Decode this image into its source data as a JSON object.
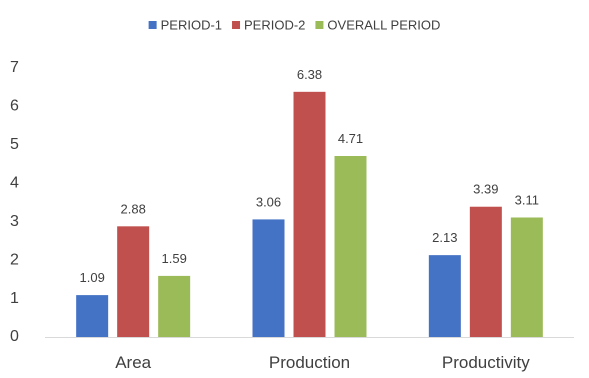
{
  "chart_data": {
    "type": "bar",
    "categories": [
      "Area",
      "Production",
      "Productivity"
    ],
    "series": [
      {
        "name": "PERIOD-1",
        "color": "#4472C4",
        "values": [
          1.09,
          3.06,
          2.13
        ]
      },
      {
        "name": "PERIOD-2",
        "color": "#C0504D",
        "values": [
          2.88,
          6.38,
          3.39
        ]
      },
      {
        "name": "OVERALL PERIOD",
        "color": "#9BBB59",
        "values": [
          1.59,
          4.71,
          3.11
        ]
      }
    ],
    "yticks": [
      0,
      1,
      2,
      3,
      4,
      5,
      6,
      7
    ],
    "ylim": [
      0,
      7
    ],
    "data_labels": true,
    "legend_position": "top",
    "grid": false
  }
}
